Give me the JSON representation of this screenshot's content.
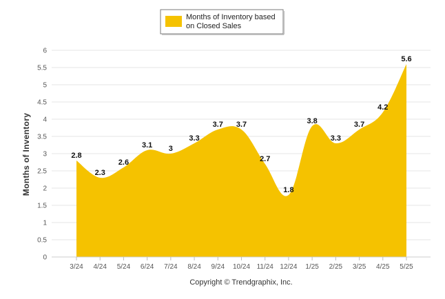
{
  "chart_data": {
    "type": "area",
    "categories": [
      "3/24",
      "4/24",
      "5/24",
      "6/24",
      "7/24",
      "8/24",
      "9/24",
      "10/24",
      "11/24",
      "12/24",
      "1/25",
      "2/25",
      "3/25",
      "4/25",
      "5/25"
    ],
    "series": [
      {
        "name": "Months of Inventory based on Closed Sales",
        "values": [
          2.8,
          2.3,
          2.6,
          3.1,
          3.0,
          3.3,
          3.7,
          3.7,
          2.7,
          1.8,
          3.8,
          3.3,
          3.7,
          4.2,
          5.6
        ]
      }
    ],
    "data_labels": [
      "2.8",
      "2.3",
      "2.6",
      "3.1",
      "3",
      "3.3",
      "3.7",
      "3.7",
      "2.7",
      "1.8",
      "3.8",
      "3.3",
      "3.7",
      "4.2",
      "5.6"
    ],
    "yticks": [
      "0",
      "0.5",
      "1",
      "1.5",
      "2",
      "2.5",
      "3",
      "3.5",
      "4",
      "4.5",
      "5",
      "5.5",
      "6"
    ],
    "ylim": [
      0,
      6
    ],
    "ylabel": "Months of Inventory",
    "legend": {
      "line1": "Months of Inventory based",
      "line2": "on Closed Sales",
      "position": "top-center"
    },
    "grid": true,
    "colors": {
      "fill": "#F5C200",
      "grid": "#e6e6e6"
    }
  },
  "footer": {
    "copyright": "Copyright © Trendgraphix, Inc."
  }
}
